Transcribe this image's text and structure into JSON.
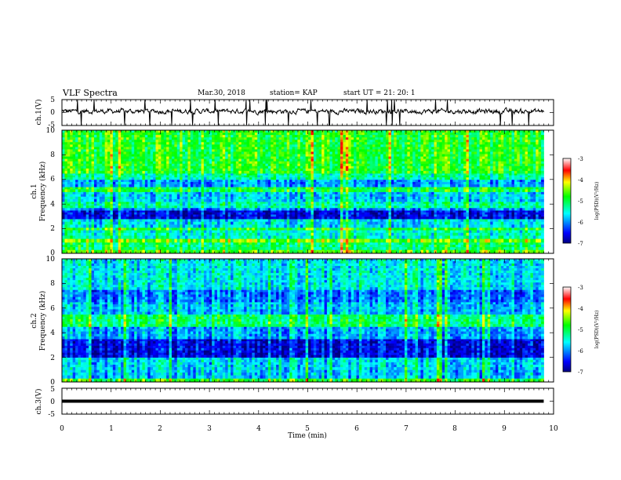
{
  "header": {
    "title": "VLF Spectra",
    "date": "Mar.30, 2018",
    "station": "station= KAP",
    "start": "start  UT =   21: 20: 1"
  },
  "chart_data": [
    {
      "type": "line",
      "ylabel": "ch.1(V)",
      "ylim": [
        -5,
        5
      ],
      "yticks": [
        "5",
        "0",
        "-5"
      ],
      "xlim": [
        0,
        9.8
      ],
      "y_approx_range": [
        -2,
        4
      ],
      "note_values": "noisy waveform centered ~0.5 V, with spikes up to about +5 and down to -5"
    },
    {
      "type": "heatmap",
      "ylabel": "ch.1\nFrequency (kHz)",
      "ylim": [
        0,
        10
      ],
      "yticks": [
        "0",
        "2",
        "4",
        "6",
        "8",
        "10"
      ],
      "xlim": [
        0,
        9.8
      ],
      "colorbar": {
        "label": "log(PSD)(V²/Hz)",
        "ticks": [
          "-3",
          "-4",
          "-5",
          "-6",
          "-7"
        ],
        "range": [
          -7,
          -3
        ]
      },
      "bands": [
        {
          "f": [
            0.0,
            0.3
          ],
          "v": -4.6
        },
        {
          "f": [
            0.3,
            0.9
          ],
          "v": -5.1
        },
        {
          "f": [
            0.9,
            1.2
          ],
          "v": -4.5
        },
        {
          "f": [
            1.2,
            1.9
          ],
          "v": -5.4
        },
        {
          "f": [
            1.9,
            2.1
          ],
          "v": -4.8
        },
        {
          "f": [
            2.1,
            2.8
          ],
          "v": -5.6
        },
        {
          "f": [
            2.8,
            3.5
          ],
          "v": -6.6
        },
        {
          "f": [
            3.5,
            3.7
          ],
          "v": -6.0
        },
        {
          "f": [
            3.7,
            4.2
          ],
          "v": -5.3
        },
        {
          "f": [
            4.2,
            5.0
          ],
          "v": -5.7
        },
        {
          "f": [
            5.0,
            5.4
          ],
          "v": -4.9
        },
        {
          "f": [
            5.4,
            6.0
          ],
          "v": -5.9
        },
        {
          "f": [
            6.0,
            6.5
          ],
          "v": -5.3
        },
        {
          "f": [
            6.5,
            10.0
          ],
          "v": -4.8
        }
      ]
    },
    {
      "type": "heatmap",
      "ylabel": "ch.2\nFrequency (kHz)",
      "ylim": [
        0,
        10
      ],
      "yticks": [
        "0",
        "2",
        "4",
        "6",
        "8",
        "10"
      ],
      "xlim": [
        0,
        9.8
      ],
      "colorbar": {
        "label": "log(PSD)(V²/Hz)",
        "ticks": [
          "-3",
          "-4",
          "-5",
          "-6",
          "-7"
        ],
        "range": [
          -7,
          -3
        ]
      },
      "bands": [
        {
          "f": [
            0.0,
            0.3
          ],
          "v": -4.8
        },
        {
          "f": [
            0.3,
            1.0
          ],
          "v": -5.8
        },
        {
          "f": [
            1.0,
            2.0
          ],
          "v": -5.7
        },
        {
          "f": [
            2.0,
            3.5
          ],
          "v": -6.6
        },
        {
          "f": [
            3.5,
            4.5
          ],
          "v": -5.9
        },
        {
          "f": [
            4.5,
            5.5
          ],
          "v": -5.1
        },
        {
          "f": [
            5.5,
            6.5
          ],
          "v": -5.8
        },
        {
          "f": [
            6.5,
            7.5
          ],
          "v": -6.1
        },
        {
          "f": [
            7.5,
            10.0
          ],
          "v": -5.6
        }
      ]
    },
    {
      "type": "line",
      "ylabel": "ch.3(V)",
      "ylim": [
        -5,
        5
      ],
      "yticks": [
        "5",
        "0",
        "-5"
      ],
      "xlim": [
        0,
        9.8
      ],
      "values_constant": 0,
      "xlabel": "Time (min)",
      "xticks": [
        "0",
        "1",
        "2",
        "3",
        "4",
        "5",
        "6",
        "7",
        "8",
        "9",
        "10"
      ],
      "xaxis_lim": [
        0,
        10
      ]
    }
  ]
}
